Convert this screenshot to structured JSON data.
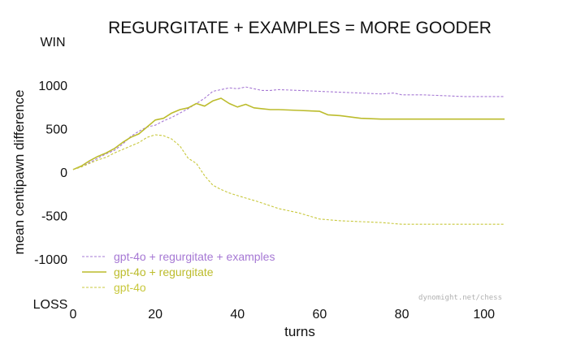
{
  "chart_data": {
    "type": "line",
    "title": "REGURGITATE + EXAMPLES = MORE GOODER",
    "xlabel": "turns",
    "ylabel": "mean centipawn difference",
    "y_top_label": "WIN",
    "y_bottom_label": "LOSS",
    "watermark": "dynomight.net/chess",
    "xlim": [
      0,
      105
    ],
    "ylim": [
      -1500,
      1500
    ],
    "xticks": [
      0,
      20,
      40,
      60,
      80,
      100
    ],
    "yticks": [
      1000,
      500,
      0,
      -500,
      -1000
    ],
    "ytick_labels": [
      "1000",
      "500",
      "0",
      "-500",
      "-1000"
    ],
    "grid": false,
    "legend_position": "bottom-left",
    "series": [
      {
        "name": "gpt-4o + regurgitate + examples",
        "color": "#a678d4",
        "dash": "dashed",
        "x": [
          0,
          2,
          4,
          6,
          8,
          10,
          12,
          14,
          16,
          18,
          20,
          22,
          24,
          26,
          28,
          30,
          32,
          34,
          36,
          38,
          40,
          42,
          44,
          46,
          48,
          50,
          55,
          60,
          65,
          70,
          75,
          78,
          80,
          85,
          90,
          95,
          100,
          105
        ],
        "y": [
          30,
          60,
          110,
          160,
          210,
          250,
          320,
          410,
          470,
          520,
          540,
          590,
          630,
          680,
          730,
          790,
          850,
          930,
          950,
          970,
          960,
          980,
          960,
          940,
          940,
          950,
          940,
          930,
          920,
          910,
          900,
          910,
          890,
          890,
          880,
          870,
          870,
          870
        ]
      },
      {
        "name": "gpt-4o + regurgitate",
        "color": "#bcbc2c",
        "dash": "solid",
        "x": [
          0,
          2,
          4,
          6,
          8,
          10,
          12,
          14,
          16,
          18,
          20,
          22,
          24,
          26,
          28,
          30,
          32,
          34,
          36,
          38,
          40,
          42,
          44,
          46,
          48,
          50,
          55,
          60,
          62,
          65,
          70,
          75,
          80,
          85,
          90,
          95,
          100,
          105
        ],
        "y": [
          30,
          70,
          130,
          180,
          220,
          270,
          340,
          400,
          440,
          520,
          600,
          620,
          680,
          720,
          740,
          790,
          760,
          820,
          850,
          790,
          750,
          780,
          740,
          730,
          720,
          720,
          710,
          700,
          660,
          650,
          620,
          610,
          610,
          610,
          610,
          610,
          610,
          610
        ]
      },
      {
        "name": "gpt-4o",
        "color": "#c8c83c",
        "dash": "dashed",
        "x": [
          0,
          2,
          4,
          6,
          8,
          10,
          12,
          14,
          16,
          18,
          20,
          22,
          24,
          26,
          28,
          30,
          32,
          34,
          36,
          38,
          40,
          45,
          50,
          55,
          60,
          65,
          70,
          75,
          80,
          85,
          90,
          95,
          100,
          105
        ],
        "y": [
          30,
          60,
          100,
          140,
          170,
          220,
          260,
          300,
          340,
          400,
          430,
          420,
          380,
          300,
          160,
          100,
          -40,
          -150,
          -200,
          -240,
          -270,
          -340,
          -420,
          -470,
          -540,
          -560,
          -570,
          -580,
          -600,
          -600,
          -600,
          -600,
          -600,
          -600
        ]
      }
    ]
  }
}
